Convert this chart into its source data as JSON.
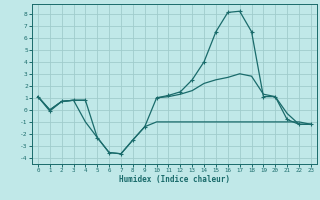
{
  "xlabel": "Humidex (Indice chaleur)",
  "background_color": "#c0e8e8",
  "grid_color": "#a0cccc",
  "line_color": "#1a6b6b",
  "x_values": [
    0,
    1,
    2,
    3,
    4,
    5,
    6,
    7,
    8,
    9,
    10,
    11,
    12,
    13,
    14,
    15,
    16,
    17,
    18,
    19,
    20,
    21,
    22,
    23
  ],
  "line_top_y": [
    1.1,
    -0.1,
    0.7,
    0.8,
    0.8,
    -2.3,
    -3.55,
    -3.65,
    -2.5,
    -1.4,
    1.0,
    1.2,
    1.5,
    2.5,
    4.0,
    6.5,
    8.1,
    8.2,
    6.5,
    1.1,
    1.1,
    -0.8,
    -1.2,
    -1.2
  ],
  "line_mid_y": [
    1.1,
    0.0,
    0.7,
    0.8,
    0.8,
    null,
    null,
    null,
    null,
    null,
    1.0,
    1.1,
    1.3,
    1.6,
    2.2,
    2.5,
    2.7,
    3.0,
    2.8,
    1.3,
    1.1,
    -0.3,
    -1.2,
    -1.2
  ],
  "line_bot_y": [
    1.1,
    0.0,
    0.7,
    0.8,
    -1.0,
    -2.3,
    -3.55,
    -3.65,
    -2.5,
    -1.4,
    -1.0,
    -1.0,
    -1.0,
    -1.0,
    -1.0,
    -1.0,
    -1.0,
    -1.0,
    -1.0,
    -1.0,
    -1.0,
    -1.0,
    -1.0,
    -1.2
  ],
  "ylim": [
    -4.5,
    8.8
  ],
  "xlim": [
    -0.5,
    23.5
  ],
  "yticks": [
    -4,
    -3,
    -2,
    -1,
    0,
    1,
    2,
    3,
    4,
    5,
    6,
    7,
    8
  ],
  "xticks": [
    0,
    1,
    2,
    3,
    4,
    5,
    6,
    7,
    8,
    9,
    10,
    11,
    12,
    13,
    14,
    15,
    16,
    17,
    18,
    19,
    20,
    21,
    22,
    23
  ]
}
